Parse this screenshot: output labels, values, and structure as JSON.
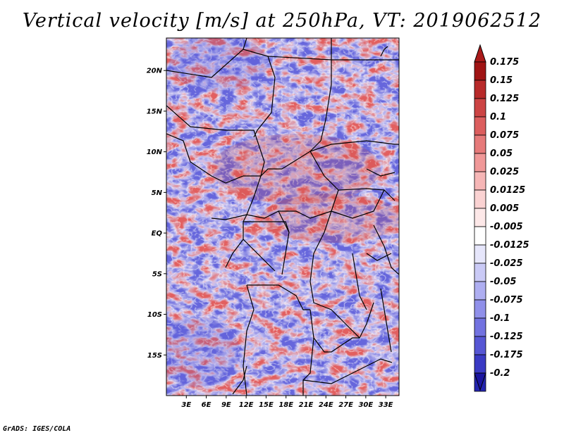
{
  "title": "Vertical velocity [m/s] at 250hPa, VT: 2019062512",
  "credit": "GrADS: IGES/COLA",
  "map": {
    "lat_range": [
      -20,
      24
    ],
    "lon_range": [
      0,
      35
    ],
    "lat_ticks": [
      {
        "value": 20,
        "label": "20N"
      },
      {
        "value": 15,
        "label": "15N"
      },
      {
        "value": 10,
        "label": "10N"
      },
      {
        "value": 5,
        "label": "5N"
      },
      {
        "value": 0,
        "label": "EQ"
      },
      {
        "value": -5,
        "label": "5S"
      },
      {
        "value": -10,
        "label": "10S"
      },
      {
        "value": -15,
        "label": "15S"
      }
    ],
    "lon_ticks": [
      {
        "value": 3,
        "label": "3E"
      },
      {
        "value": 6,
        "label": "6E"
      },
      {
        "value": 9,
        "label": "9E"
      },
      {
        "value": 12,
        "label": "12E"
      },
      {
        "value": 15,
        "label": "15E"
      },
      {
        "value": 18,
        "label": "18E"
      },
      {
        "value": 21,
        "label": "21E"
      },
      {
        "value": 24,
        "label": "24E"
      },
      {
        "value": 27,
        "label": "27E"
      },
      {
        "value": 30,
        "label": "30E"
      },
      {
        "value": 33,
        "label": "33E"
      }
    ]
  },
  "colorbar": {
    "levels": [
      {
        "label": "0.175",
        "color": "#a01414"
      },
      {
        "label": "0.15",
        "color": "#b82a2a"
      },
      {
        "label": "0.125",
        "color": "#cc4444"
      },
      {
        "label": "0.1",
        "color": "#dc5e5e"
      },
      {
        "label": "0.075",
        "color": "#e67a7a"
      },
      {
        "label": "0.05",
        "color": "#f09898"
      },
      {
        "label": "0.025",
        "color": "#f6b6b6"
      },
      {
        "label": "0.0125",
        "color": "#fad2d2"
      },
      {
        "label": "0.005",
        "color": "#fde8e8"
      },
      {
        "label": "-0.005",
        "color": "#ffffff"
      },
      {
        "label": "-0.0125",
        "color": "#e6e6fb"
      },
      {
        "label": "-0.025",
        "color": "#cacaf6"
      },
      {
        "label": "-0.05",
        "color": "#aeaef1"
      },
      {
        "label": "-0.075",
        "color": "#9090ea"
      },
      {
        "label": "-0.1",
        "color": "#7272e0"
      },
      {
        "label": "-0.125",
        "color": "#5656d4"
      },
      {
        "label": "-0.175",
        "color": "#3a3ac4"
      },
      {
        "label": "-0.2",
        "color": "#2424b0"
      }
    ],
    "bottom_color": "#1a14a0",
    "top_color": "#aa1a1a"
  }
}
